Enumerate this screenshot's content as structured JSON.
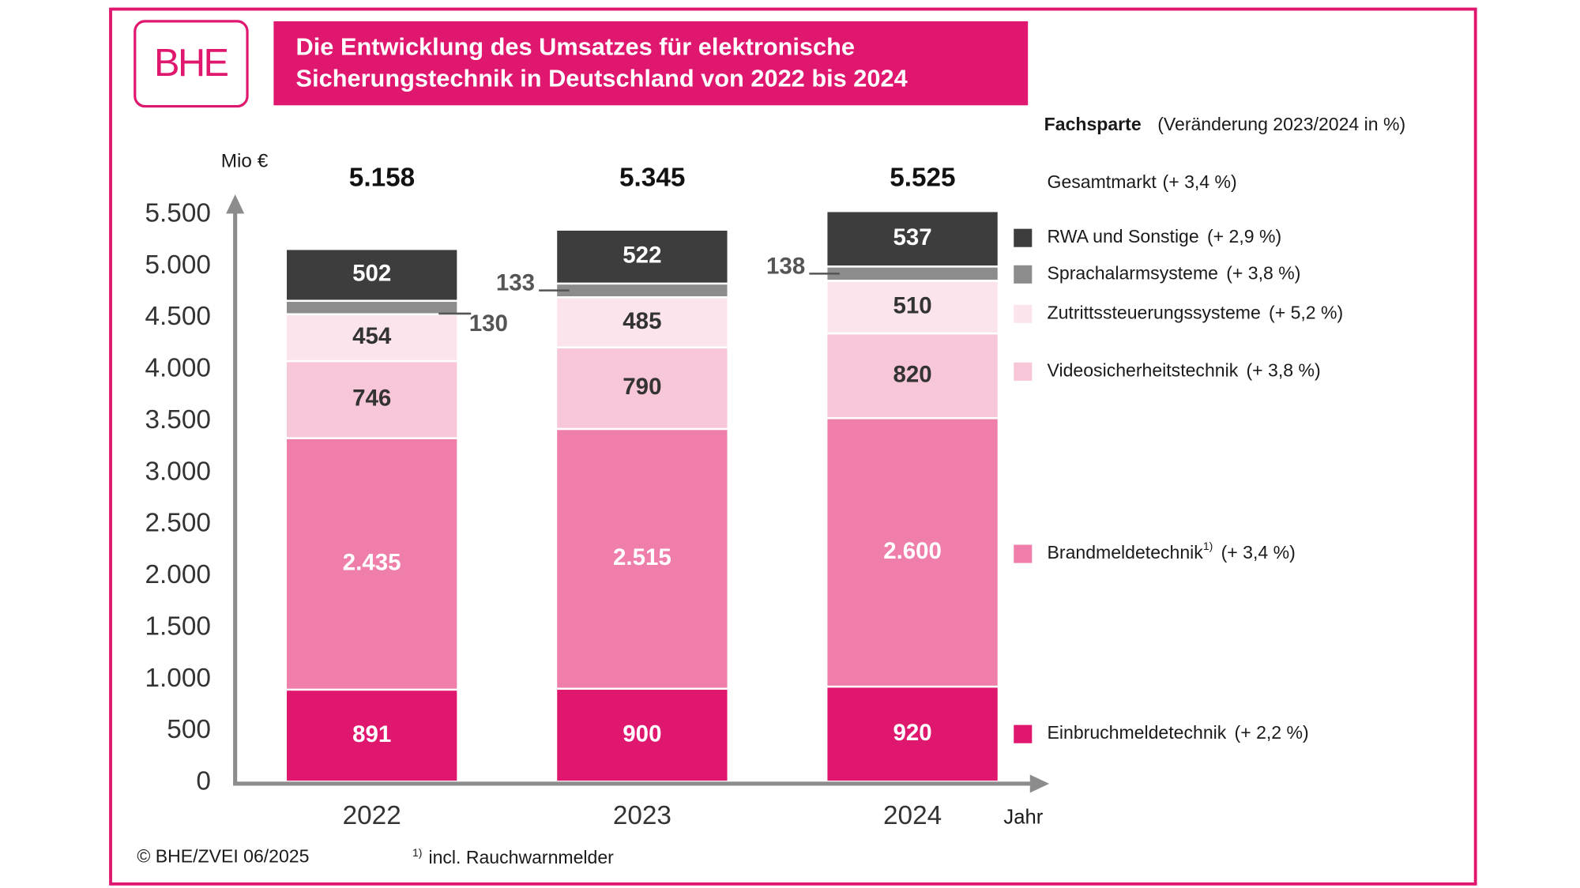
{
  "chart_data": {
    "type": "stacked_bar",
    "title": [
      "Die Entwicklung des Umsatzes für elektronische",
      "Sicherungstechnik in Deutschland von 2022 bis 2024"
    ],
    "logo": "BHE",
    "y_label": "Mio €",
    "x_label": "Jahr",
    "legend_title": "Fachsparte",
    "legend_subtitle": "(Veränderung 2023/2024 in %)",
    "categories": [
      "2022",
      "2023",
      "2024"
    ],
    "series": [
      {
        "name": "Einbruchmeldetechnik",
        "change": "(+ 2,2 %)",
        "color": "#e0176e",
        "label_color": "#ffffff",
        "values": [
          891,
          900,
          920
        ]
      },
      {
        "name": "Brandmeldetechnik",
        "footnote_mark": "1)",
        "change": "(+ 3,4 %)",
        "color": "#ef7eab",
        "label_color": "#ffffff",
        "values": [
          2435,
          2515,
          2600
        ],
        "value_labels": [
          "2.435",
          "2.515",
          "2.600"
        ]
      },
      {
        "name": "Videosicherheitstechnik",
        "change": "(+ 3,8 %)",
        "color": "#f7c6d9",
        "label_color": "#333333",
        "values": [
          746,
          790,
          820
        ]
      },
      {
        "name": "Zutrittssteuerungssysteme",
        "change": "(+ 5,2 %)",
        "color": "#fce4ec",
        "label_color": "#333333",
        "values": [
          454,
          485,
          510
        ]
      },
      {
        "name": "Sprachalarmsysteme",
        "change": "(+ 3,8 %)",
        "color": "#8c8c8c",
        "label_color": "#555555",
        "label_position": "outside",
        "values": [
          130,
          133,
          138
        ]
      },
      {
        "name": "RWA und Sonstige",
        "change": "(+ 2,9 %)",
        "color": "#3d3d3d",
        "label_color": "#ffffff",
        "values": [
          502,
          522,
          537
        ]
      }
    ],
    "total": {
      "name": "Gesamtmarkt",
      "change": "(+ 3,4 %)",
      "values": [
        5158,
        5345,
        5525
      ],
      "value_labels": [
        "5.158",
        "5.345",
        "5.525"
      ]
    },
    "ylim": [
      0,
      5500
    ],
    "yticks": [
      0,
      500,
      {
        "value": 1000,
        "label": "1.000"
      },
      {
        "value": 1500,
        "label": "1.500"
      },
      {
        "value": 2000,
        "label": "2.000"
      },
      {
        "value": 2500,
        "label": "2.500"
      },
      {
        "value": 3000,
        "label": "3.000"
      },
      {
        "value": 3500,
        "label": "3.500"
      },
      {
        "value": 4000,
        "label": "4.000"
      },
      {
        "value": 4500,
        "label": "4.500"
      },
      {
        "value": 5000,
        "label": "5.000"
      },
      {
        "value": 5500,
        "label": "5.500"
      }
    ],
    "source": "© BHE/ZVEI 06/2025",
    "footnote_mark": "1)",
    "footnote": "incl. Rauchwarnmelder"
  }
}
